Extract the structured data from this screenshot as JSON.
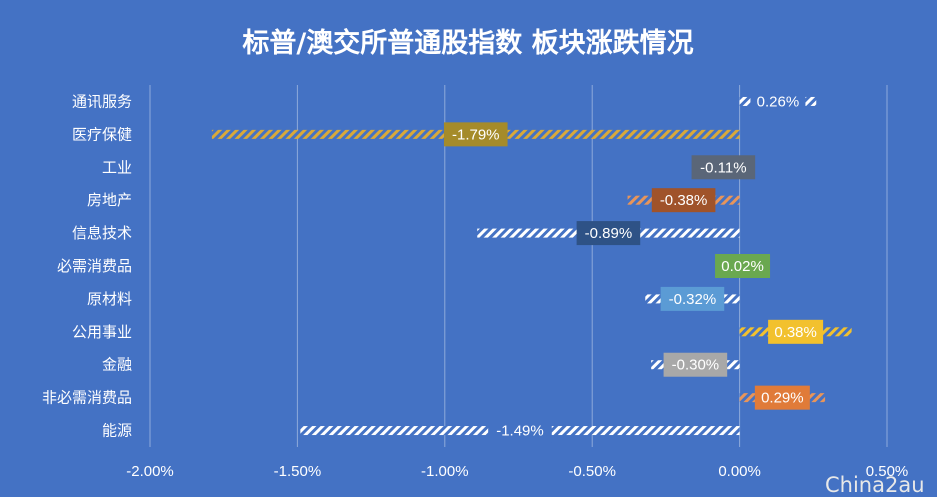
{
  "chart_data": {
    "type": "bar",
    "orientation": "horizontal",
    "title": "标普/澳交所普通股指数 板块涨跌情况",
    "xlabel": "",
    "ylabel": "",
    "xlim": [
      -0.02,
      0.005
    ],
    "grid": true,
    "legend": "none",
    "categories": [
      "通讯服务",
      "医疗保健",
      "工业",
      "房地产",
      "信息技术",
      "必需消费品",
      "原材料",
      "公用事业",
      "金融",
      "非必需消费品",
      "能源"
    ],
    "values": [
      0.0026,
      -0.0179,
      -0.0011,
      -0.0038,
      -0.0089,
      0.0002,
      -0.0032,
      0.0038,
      -0.003,
      0.0029,
      -0.0149
    ],
    "data_labels": [
      "0.26%",
      "-1.79%",
      "-0.11%",
      "-0.38%",
      "-0.89%",
      "0.02%",
      "-0.32%",
      "0.38%",
      "-0.30%",
      "0.29%",
      "-1.49%"
    ],
    "label_colors": [
      "#4472C4",
      "#A58B2A",
      "#5A6678",
      "#A0532A",
      "#2E5286",
      "#6AA84F",
      "#5B9BD5",
      "#F2C12E",
      "#A8A8A8",
      "#E07B39",
      "#4472C4"
    ],
    "bar_colors": [
      "#FFFFFF",
      "#D9A93A",
      "#FFFFFF",
      "#E8955A",
      "#FFFFFF",
      "#FFFFFF",
      "#FFFFFF",
      "#F2C12E",
      "#FFFFFF",
      "#E8955A",
      "#FFFFFF"
    ],
    "x_tick_labels": [
      "-2.00%",
      "-1.50%",
      "-1.00%",
      "-0.50%",
      "0.00%",
      "0.50%"
    ],
    "x_ticks": [
      -0.02,
      -0.015,
      -0.01,
      -0.005,
      0,
      0.005
    ]
  },
  "watermark": "China2au",
  "colors": {
    "background": "#4472C4",
    "grid": "#8EAADB",
    "text": "#FFFFFF"
  }
}
